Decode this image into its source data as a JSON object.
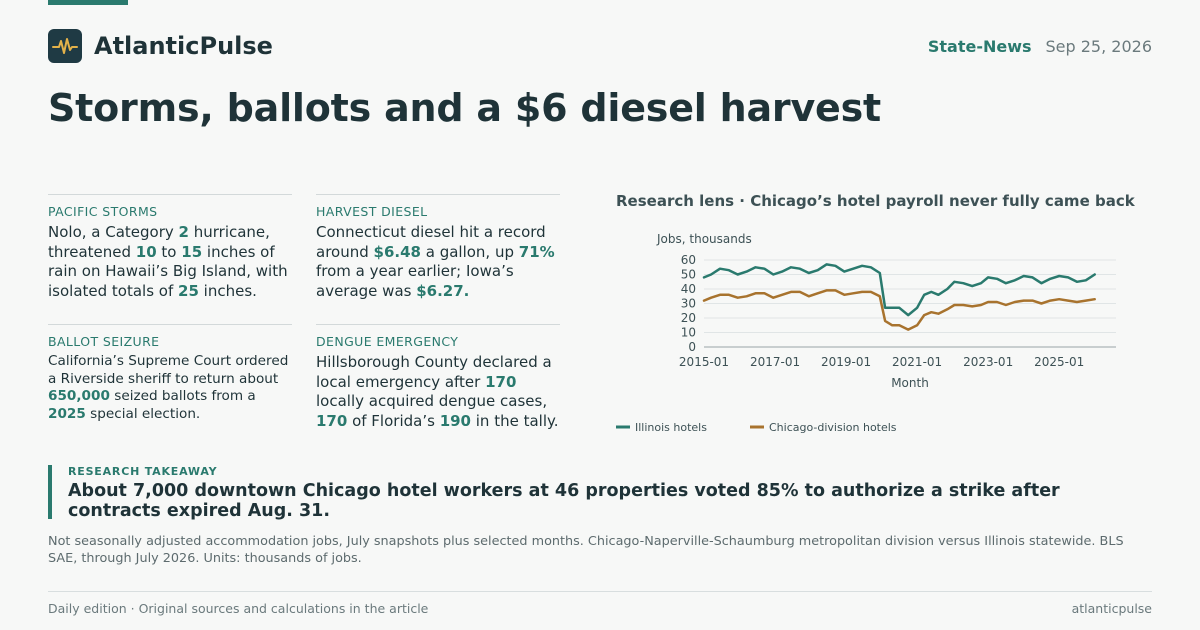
{
  "brand": {
    "name": "AtlanticPulse",
    "logo_icon": "pulse-icon"
  },
  "header": {
    "section": "State-News",
    "date": "Sep 25, 2026"
  },
  "headline": "Storms, ballots and a $6 diesel harvest",
  "cards": [
    {
      "label": "PACIFIC STORMS",
      "parts": [
        {
          "t": "Nolo, a Category "
        },
        {
          "t": "2",
          "h": true
        },
        {
          "t": " hurricane, threatened "
        },
        {
          "t": "10",
          "h": true
        },
        {
          "t": " to "
        },
        {
          "t": "15",
          "h": true
        },
        {
          "t": " inches of rain on Hawaii’s Big Island, with isolated totals of "
        },
        {
          "t": "25",
          "h": true
        },
        {
          "t": " inches."
        }
      ]
    },
    {
      "label": "HARVEST DIESEL",
      "parts": [
        {
          "t": "Connecticut diesel hit a record around "
        },
        {
          "t": "$6.48",
          "h": true
        },
        {
          "t": " a gallon, up "
        },
        {
          "t": "71%",
          "h": true
        },
        {
          "t": " from a year earlier; Iowa’s average was "
        },
        {
          "t": "$6.27.",
          "h": true
        }
      ]
    },
    {
      "label": "BALLOT SEIZURE",
      "parts": [
        {
          "t": "California’s Supreme Court ordered a Riverside sheriff to return about "
        },
        {
          "t": "650,000",
          "h": true
        },
        {
          "t": " seized ballots from a "
        },
        {
          "t": "2025",
          "h": true
        },
        {
          "t": " special election."
        }
      ]
    },
    {
      "label": "DENGUE EMERGENCY",
      "parts": [
        {
          "t": "Hillsborough County declared a local emergency after "
        },
        {
          "t": "170",
          "h": true
        },
        {
          "t": " locally acquired dengue cases, "
        },
        {
          "t": "170",
          "h": true
        },
        {
          "t": " of Florida’s "
        },
        {
          "t": "190",
          "h": true
        },
        {
          "t": " in the tally."
        }
      ]
    }
  ],
  "chart_title": "Research lens · Chicago’s hotel payroll never fully came back",
  "chart_data": {
    "type": "line",
    "ylabel": "Jobs, thousands",
    "xlabel": "Month",
    "ylim": [
      0,
      60
    ],
    "yticks": [
      0,
      10,
      20,
      30,
      40,
      50,
      60
    ],
    "xlim": [
      2015.0,
      2026.6
    ],
    "xticks": [
      {
        "v": 2015.0,
        "label": "2015-01"
      },
      {
        "v": 2017.0,
        "label": "2017-01"
      },
      {
        "v": 2019.0,
        "label": "2019-01"
      },
      {
        "v": 2021.0,
        "label": "2021-01"
      },
      {
        "v": 2023.0,
        "label": "2023-01"
      },
      {
        "v": 2025.0,
        "label": "2025-01"
      }
    ],
    "grid": true,
    "legend": "bottom-left",
    "series": [
      {
        "name": "Illinois hotels",
        "color": "#2a7a6e",
        "points": [
          [
            2015.0,
            48
          ],
          [
            2015.2,
            50
          ],
          [
            2015.45,
            54
          ],
          [
            2015.7,
            53
          ],
          [
            2015.95,
            50
          ],
          [
            2016.2,
            52
          ],
          [
            2016.45,
            55
          ],
          [
            2016.7,
            54
          ],
          [
            2016.95,
            50
          ],
          [
            2017.2,
            52
          ],
          [
            2017.45,
            55
          ],
          [
            2017.7,
            54
          ],
          [
            2017.95,
            51
          ],
          [
            2018.2,
            53
          ],
          [
            2018.45,
            57
          ],
          [
            2018.7,
            56
          ],
          [
            2018.95,
            52
          ],
          [
            2019.2,
            54
          ],
          [
            2019.45,
            56
          ],
          [
            2019.7,
            55
          ],
          [
            2019.95,
            51
          ],
          [
            2020.1,
            27
          ],
          [
            2020.3,
            27
          ],
          [
            2020.5,
            27
          ],
          [
            2020.75,
            22
          ],
          [
            2021.0,
            27
          ],
          [
            2021.2,
            36
          ],
          [
            2021.4,
            38
          ],
          [
            2021.6,
            36
          ],
          [
            2021.85,
            40
          ],
          [
            2022.05,
            45
          ],
          [
            2022.3,
            44
          ],
          [
            2022.55,
            42
          ],
          [
            2022.8,
            44
          ],
          [
            2023.0,
            48
          ],
          [
            2023.25,
            47
          ],
          [
            2023.5,
            44
          ],
          [
            2023.75,
            46
          ],
          [
            2024.0,
            49
          ],
          [
            2024.25,
            48
          ],
          [
            2024.5,
            44
          ],
          [
            2024.75,
            47
          ],
          [
            2025.0,
            49
          ],
          [
            2025.25,
            48
          ],
          [
            2025.5,
            45
          ],
          [
            2025.75,
            46
          ],
          [
            2026.0,
            50
          ]
        ]
      },
      {
        "name": "Chicago-division hotels",
        "color": "#a8732e",
        "points": [
          [
            2015.0,
            32
          ],
          [
            2015.2,
            34
          ],
          [
            2015.45,
            36
          ],
          [
            2015.7,
            36
          ],
          [
            2015.95,
            34
          ],
          [
            2016.2,
            35
          ],
          [
            2016.45,
            37
          ],
          [
            2016.7,
            37
          ],
          [
            2016.95,
            34
          ],
          [
            2017.2,
            36
          ],
          [
            2017.45,
            38
          ],
          [
            2017.7,
            38
          ],
          [
            2017.95,
            35
          ],
          [
            2018.2,
            37
          ],
          [
            2018.45,
            39
          ],
          [
            2018.7,
            39
          ],
          [
            2018.95,
            36
          ],
          [
            2019.2,
            37
          ],
          [
            2019.45,
            38
          ],
          [
            2019.7,
            38
          ],
          [
            2019.95,
            35
          ],
          [
            2020.1,
            18
          ],
          [
            2020.3,
            15
          ],
          [
            2020.5,
            15
          ],
          [
            2020.75,
            12
          ],
          [
            2021.0,
            15
          ],
          [
            2021.2,
            22
          ],
          [
            2021.4,
            24
          ],
          [
            2021.6,
            23
          ],
          [
            2021.85,
            26
          ],
          [
            2022.05,
            29
          ],
          [
            2022.3,
            29
          ],
          [
            2022.55,
            28
          ],
          [
            2022.8,
            29
          ],
          [
            2023.0,
            31
          ],
          [
            2023.25,
            31
          ],
          [
            2023.5,
            29
          ],
          [
            2023.75,
            31
          ],
          [
            2024.0,
            32
          ],
          [
            2024.25,
            32
          ],
          [
            2024.5,
            30
          ],
          [
            2024.75,
            32
          ],
          [
            2025.0,
            33
          ],
          [
            2025.25,
            32
          ],
          [
            2025.5,
            31
          ],
          [
            2025.75,
            32
          ],
          [
            2026.0,
            33
          ]
        ]
      }
    ]
  },
  "takeaway": {
    "label": "RESEARCH TAKEAWAY",
    "text": "About 7,000 downtown Chicago hotel workers at 46 properties voted 85% to authorize a strike after contracts expired Aug. 31."
  },
  "note": "Not seasonally adjusted accommodation jobs, July snapshots plus selected months. Chicago-Naperville-Schaumburg metropolitan division versus Illinois statewide. BLS SAE, through July 2026. Units: thousands of jobs.",
  "footer": {
    "left": "Daily edition · Original sources and calculations in the article",
    "right": "atlanticpulse"
  }
}
